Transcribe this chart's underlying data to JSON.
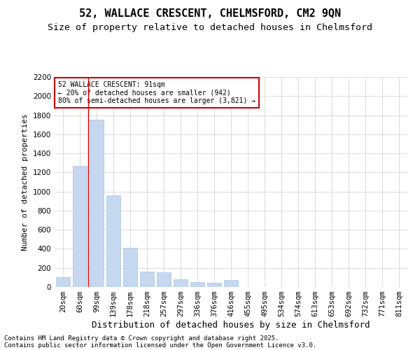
{
  "title1": "52, WALLACE CRESCENT, CHELMSFORD, CM2 9QN",
  "title2": "Size of property relative to detached houses in Chelmsford",
  "xlabel": "Distribution of detached houses by size in Chelmsford",
  "ylabel": "Number of detached properties",
  "categories": [
    "20sqm",
    "60sqm",
    "99sqm",
    "139sqm",
    "178sqm",
    "218sqm",
    "257sqm",
    "297sqm",
    "336sqm",
    "376sqm",
    "416sqm",
    "455sqm",
    "495sqm",
    "534sqm",
    "574sqm",
    "613sqm",
    "653sqm",
    "692sqm",
    "732sqm",
    "771sqm",
    "811sqm"
  ],
  "values": [
    100,
    1270,
    1750,
    960,
    410,
    160,
    155,
    80,
    50,
    45,
    70,
    0,
    0,
    0,
    0,
    0,
    0,
    0,
    0,
    0,
    0
  ],
  "bar_color": "#c5d8f0",
  "bar_edge_color": "#aac4e0",
  "vline_x": 1.52,
  "vline_color": "#cc0000",
  "annotation_text": "52 WALLACE CRESCENT: 91sqm\n← 20% of detached houses are smaller (942)\n80% of semi-detached houses are larger (3,821) →",
  "annotation_box_color": "#ffffff",
  "annotation_box_edge": "#cc0000",
  "ylim": [
    0,
    2200
  ],
  "yticks": [
    0,
    200,
    400,
    600,
    800,
    1000,
    1200,
    1400,
    1600,
    1800,
    2000,
    2200
  ],
  "background_color": "#ffffff",
  "grid_color": "#cccccc",
  "footer1": "Contains HM Land Registry data © Crown copyright and database right 2025.",
  "footer2": "Contains public sector information licensed under the Open Government Licence v3.0.",
  "title1_fontsize": 11,
  "title2_fontsize": 9.5,
  "xlabel_fontsize": 9,
  "ylabel_fontsize": 8,
  "tick_fontsize": 7.5,
  "annot_fontsize": 7,
  "footer_fontsize": 6.5
}
